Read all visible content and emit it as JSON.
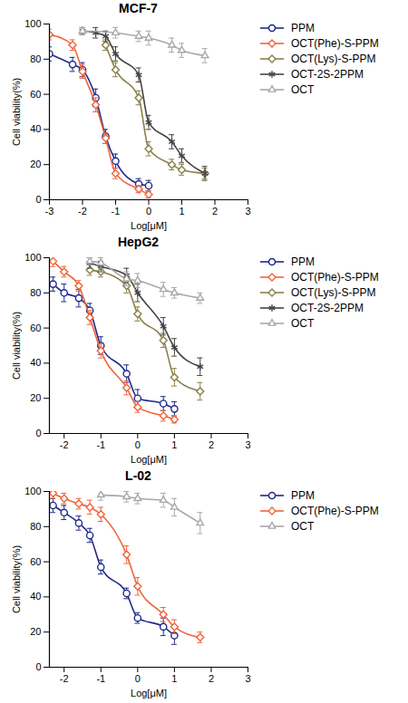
{
  "chart_data": [
    {
      "type": "line",
      "title": "MCF-7",
      "x_label": "Log[μM]",
      "y_label": "Cell viability(%)",
      "xlim": [
        -3,
        3
      ],
      "xticks": [
        -3,
        -2,
        -1,
        0,
        1,
        2,
        3
      ],
      "ylim": [
        0,
        100
      ],
      "yticks": [
        0,
        20,
        40,
        60,
        80,
        100
      ],
      "grid": false,
      "legend": "right",
      "series": [
        {
          "name": "PPM",
          "color": "#1f2a8a",
          "marker": "circle",
          "x": [
            -3,
            -2.3,
            -2,
            -1.6,
            -1.3,
            -1,
            -0.3,
            0
          ],
          "values": [
            83,
            77,
            74,
            58,
            36,
            22,
            9,
            8
          ],
          "errors": [
            4,
            4,
            4,
            5,
            4,
            4,
            3,
            3
          ]
        },
        {
          "name": "OCT(Phe)-S-PPM",
          "color": "#f0643c",
          "marker": "diamond",
          "x": [
            -3,
            -2.3,
            -2,
            -1.6,
            -1.3,
            -1,
            -0.3,
            0
          ],
          "values": [
            94,
            88,
            73,
            54,
            35,
            15,
            6,
            3
          ],
          "errors": [
            3,
            3,
            4,
            4,
            3,
            3,
            2,
            2
          ]
        },
        {
          "name": "OCT(Lys)-S-PPM",
          "color": "#8a8048",
          "marker": "diamond",
          "x": [
            -1.3,
            -1,
            -0.3,
            0,
            0.7,
            1,
            1.7
          ],
          "values": [
            88,
            74,
            58,
            29,
            20,
            17,
            15
          ],
          "errors": [
            3,
            4,
            4,
            4,
            3,
            3,
            3
          ]
        },
        {
          "name": "OCT-2S-2PPM",
          "color": "#444444",
          "marker": "asterisk",
          "x": [
            -2,
            -1.6,
            -1.3,
            -1,
            -0.3,
            0,
            0.7,
            1,
            1.7
          ],
          "values": [
            96,
            95,
            93,
            83,
            71,
            44,
            33,
            25,
            15
          ],
          "errors": [
            2,
            3,
            3,
            4,
            4,
            4,
            4,
            4,
            4
          ]
        },
        {
          "name": "OCT",
          "color": "#a8a8a8",
          "marker": "triangle",
          "x": [
            -2,
            -1,
            -0.3,
            0,
            0.7,
            1,
            1.7
          ],
          "values": [
            96,
            95,
            93,
            92,
            88,
            85,
            82
          ],
          "errors": [
            2,
            3,
            3,
            4,
            4,
            4,
            4
          ]
        }
      ]
    },
    {
      "type": "line",
      "title": "HepG2",
      "x_label": "Log[μM]",
      "y_label": "Cell viability(%)",
      "xlim": [
        -2.4,
        3
      ],
      "xticks": [
        -2,
        -1,
        0,
        1,
        2,
        3
      ],
      "ylim": [
        0,
        100
      ],
      "yticks": [
        0,
        20,
        40,
        60,
        80,
        100
      ],
      "grid": false,
      "legend": "right",
      "series": [
        {
          "name": "PPM",
          "color": "#1f2a8a",
          "marker": "circle",
          "x": [
            -2.3,
            -2,
            -1.6,
            -1.3,
            -1,
            -0.3,
            0,
            0.7,
            1
          ],
          "values": [
            85,
            80,
            77,
            70,
            50,
            34,
            20,
            17,
            14
          ],
          "errors": [
            4,
            5,
            5,
            4,
            5,
            5,
            5,
            4,
            4
          ]
        },
        {
          "name": "OCT(Phe)-S-PPM",
          "color": "#f0643c",
          "marker": "diamond",
          "x": [
            -2.3,
            -2,
            -1.6,
            -1.3,
            -1,
            -0.3,
            0,
            0.7,
            1
          ],
          "values": [
            98,
            92,
            84,
            66,
            47,
            26,
            15,
            10,
            8
          ],
          "errors": [
            3,
            3,
            3,
            4,
            4,
            4,
            3,
            3,
            2
          ]
        },
        {
          "name": "OCT(Lys)-S-PPM",
          "color": "#8a8048",
          "marker": "diamond",
          "x": [
            -1.3,
            -1,
            -0.3,
            0,
            0.7,
            1,
            1.7
          ],
          "values": [
            93,
            92,
            84,
            68,
            53,
            32,
            24
          ],
          "errors": [
            3,
            3,
            4,
            4,
            4,
            5,
            5
          ]
        },
        {
          "name": "OCT-2S-2PPM",
          "color": "#444444",
          "marker": "asterisk",
          "x": [
            -1.3,
            -1,
            -0.3,
            0,
            0.7,
            1,
            1.7
          ],
          "values": [
            97,
            95,
            90,
            80,
            61,
            49,
            38
          ],
          "errors": [
            3,
            3,
            4,
            5,
            5,
            5,
            5
          ]
        },
        {
          "name": "OCT",
          "color": "#a8a8a8",
          "marker": "triangle",
          "x": [
            -1.3,
            -1,
            -0.3,
            0,
            0.7,
            1,
            1.7
          ],
          "values": [
            98,
            97,
            88,
            87,
            82,
            80,
            77
          ],
          "errors": [
            2,
            3,
            4,
            4,
            4,
            3,
            3
          ]
        }
      ]
    },
    {
      "type": "line",
      "title": "L-02",
      "x_label": "Log[μM]",
      "y_label": "Cell viability(%)",
      "xlim": [
        -2.4,
        3
      ],
      "xticks": [
        -2,
        -1,
        0,
        1,
        2,
        3
      ],
      "ylim": [
        0,
        100
      ],
      "yticks": [
        0,
        20,
        40,
        60,
        80,
        100
      ],
      "grid": false,
      "legend": "right",
      "series": [
        {
          "name": "PPM",
          "color": "#1f2a8a",
          "marker": "circle",
          "x": [
            -2.3,
            -2,
            -1.6,
            -1.3,
            -1,
            -0.3,
            0,
            0.7,
            1
          ],
          "values": [
            92,
            88,
            82,
            75,
            57,
            42,
            28,
            23,
            18
          ],
          "errors": [
            4,
            4,
            4,
            4,
            4,
            3,
            3,
            5,
            5
          ]
        },
        {
          "name": "OCT(Phe)-S-PPM",
          "color": "#f0643c",
          "marker": "diamond",
          "x": [
            -2.3,
            -2,
            -1.6,
            -1.3,
            -1,
            -0.3,
            0,
            0.7,
            1,
            1.7
          ],
          "values": [
            99,
            96,
            93,
            91,
            87,
            64,
            46,
            30,
            23,
            17
          ],
          "errors": [
            3,
            3,
            3,
            4,
            4,
            5,
            5,
            4,
            4,
            3
          ]
        },
        {
          "name": "OCT",
          "color": "#a8a8a8",
          "marker": "triangle",
          "x": [
            -1,
            -0.3,
            0,
            0.7,
            1,
            1.7
          ],
          "values": [
            98,
            97,
            96,
            95,
            91,
            82
          ],
          "errors": [
            3,
            3,
            3,
            4,
            5,
            6
          ]
        }
      ]
    }
  ]
}
